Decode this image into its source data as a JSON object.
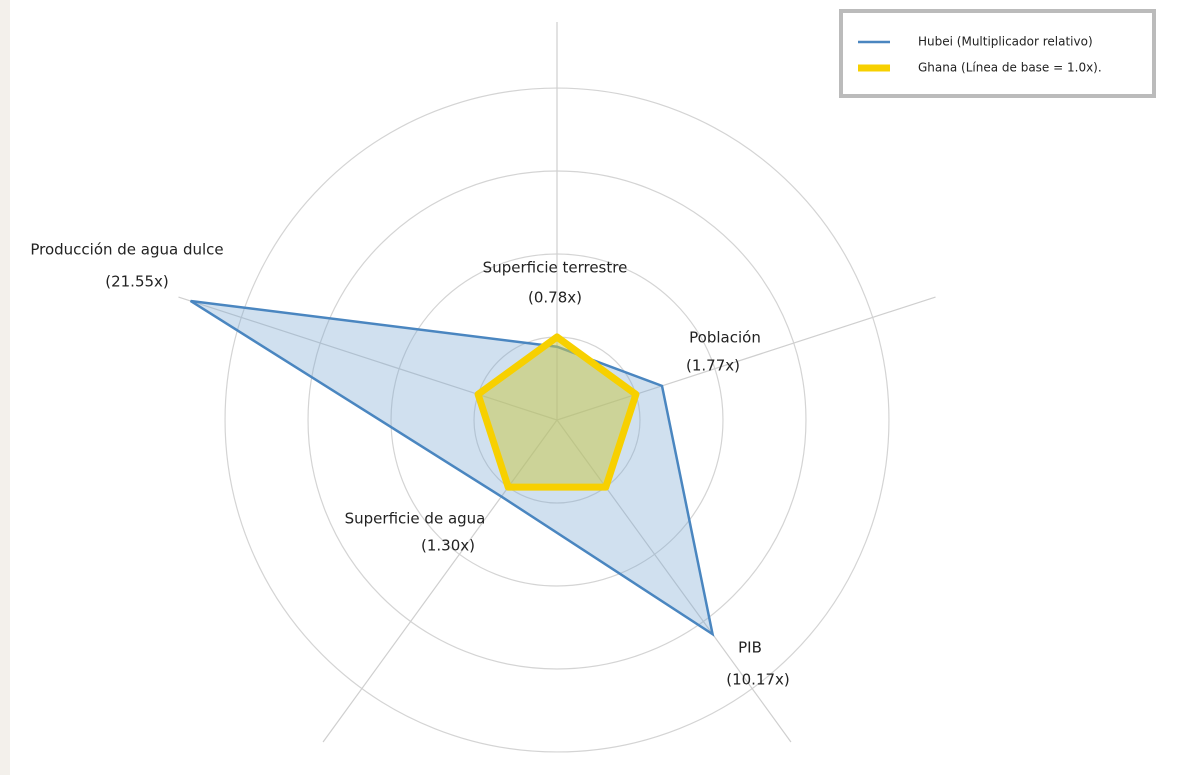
{
  "chart_data": {
    "type": "radar",
    "categories": [
      "Superficie terrestre",
      "Población",
      "PIB",
      "Superficie de agua",
      "Producción de agua dulce"
    ],
    "series": [
      {
        "name": "Hubei (Multiplicador relativo)",
        "color": "#4a86c0",
        "values": [
          0.78,
          1.77,
          10.17,
          1.3,
          21.55
        ],
        "value_labels": [
          "(0.78x)",
          "(1.77x)",
          "(10.17x)",
          "(1.30x)",
          "(21.55x)"
        ]
      },
      {
        "name": "Ghana (Línea de base = 1.0x).",
        "color": "#f7d000",
        "values": [
          1,
          1,
          1,
          1,
          1
        ]
      }
    ],
    "scale": "sqrt",
    "rlim": [
      0,
      23
    ],
    "rticks": [
      1,
      4,
      9,
      16
    ],
    "grid": true,
    "legend": "upper right"
  }
}
